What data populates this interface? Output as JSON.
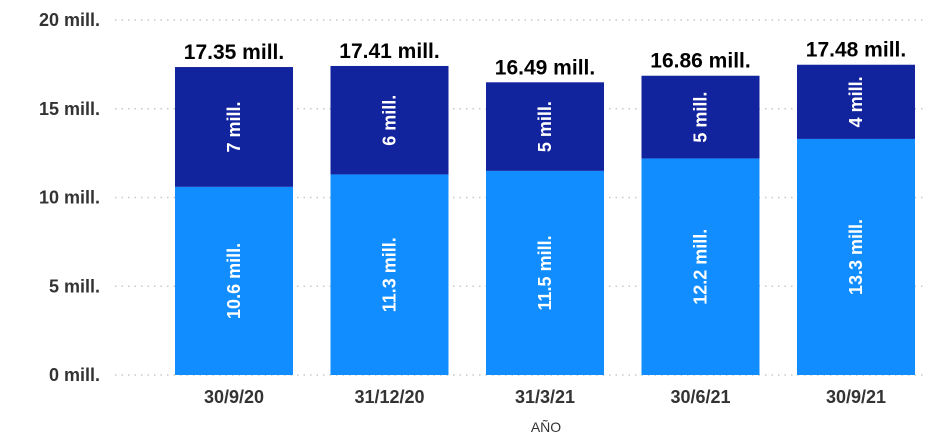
{
  "chart_data": {
    "type": "bar",
    "stacked": true,
    "categories": [
      "30/9/20",
      "31/12/20",
      "31/3/21",
      "30/6/21",
      "30/9/21"
    ],
    "series": [
      {
        "values": [
          10.6,
          11.3,
          11.5,
          12.2,
          13.3
        ],
        "labels": [
          "10.6 mill.",
          "11.3 mill.",
          "11.5 mill.",
          "12.2 mill.",
          "13.3 mill."
        ],
        "color": "#118DFF"
      },
      {
        "values": [
          6.75,
          6.11,
          4.99,
          4.66,
          4.18
        ],
        "labels": [
          "7 mill.",
          "6 mill.",
          "5 mill.",
          "5 mill.",
          "4 mill."
        ],
        "color": "#12239E"
      }
    ],
    "totals": [
      "17.35 mill.",
      "17.41 mill.",
      "16.49 mill.",
      "16.86 mill.",
      "17.48 mill."
    ],
    "total_values": [
      17.35,
      17.41,
      16.49,
      16.86,
      17.48
    ],
    "yticks": [
      "0 mill.",
      "5 mill.",
      "10 mill.",
      "15 mill.",
      "20 mill."
    ],
    "ytick_values": [
      0,
      5,
      10,
      15,
      20
    ],
    "ylim": [
      0,
      20
    ],
    "xlabel": "AÑO",
    "ylabel": "",
    "grid": true,
    "legend": "none"
  }
}
